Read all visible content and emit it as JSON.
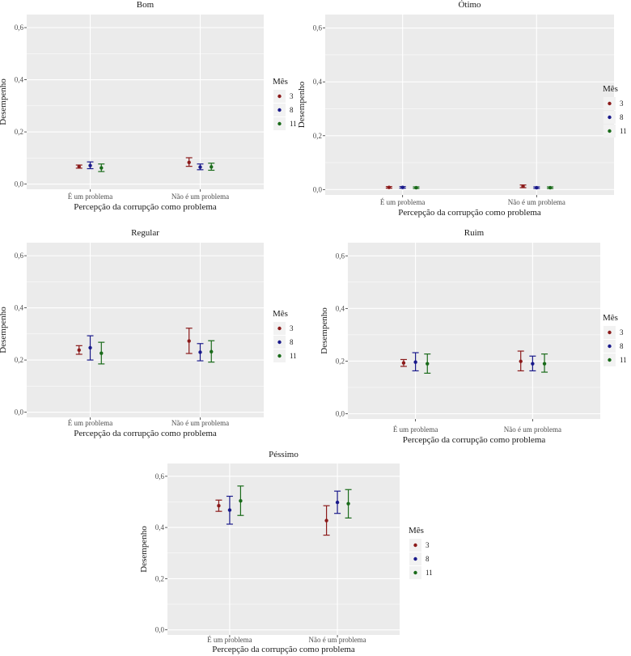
{
  "legend": {
    "title": "Mês",
    "items": [
      "3",
      "8",
      "11"
    ]
  },
  "colors": {
    "3": "#8b1a1a",
    "8": "#1a1a8b",
    "11": "#1a6b1a",
    "panel_bg": "#ebebeb",
    "grid": "#ffffff"
  },
  "chart_data": [
    {
      "type": "errorbar",
      "title": "Bom",
      "xlabel": "Percepção da corrupção como problema",
      "ylabel": "Desempenho",
      "categories": [
        "É um problema",
        "Não é um problema"
      ],
      "yticks": [
        "0,0",
        "0,2",
        "0,4",
        "0,6"
      ],
      "ylim": [
        -0.02,
        0.65
      ],
      "series": [
        {
          "name": "3",
          "mean": [
            0.067,
            0.083
          ],
          "low": [
            0.061,
            0.068
          ],
          "high": [
            0.073,
            0.101
          ]
        },
        {
          "name": "8",
          "mean": [
            0.071,
            0.065
          ],
          "low": [
            0.059,
            0.055
          ],
          "high": [
            0.085,
            0.077
          ]
        },
        {
          "name": "11",
          "mean": [
            0.062,
            0.066
          ],
          "low": [
            0.048,
            0.053
          ],
          "high": [
            0.077,
            0.08
          ]
        }
      ]
    },
    {
      "type": "errorbar",
      "title": "Ótimo",
      "xlabel": "Percepção da corrupção como problema",
      "ylabel": "Desempenho",
      "categories": [
        "É um problema",
        "Não é um problema"
      ],
      "yticks": [
        "0,0",
        "0,2",
        "0,4",
        "0,6"
      ],
      "ylim": [
        -0.02,
        0.65
      ],
      "series": [
        {
          "name": "3",
          "mean": [
            0.008,
            0.012
          ],
          "low": [
            0.005,
            0.007
          ],
          "high": [
            0.011,
            0.017
          ]
        },
        {
          "name": "8",
          "mean": [
            0.008,
            0.007
          ],
          "low": [
            0.005,
            0.004
          ],
          "high": [
            0.011,
            0.01
          ]
        },
        {
          "name": "11",
          "mean": [
            0.007,
            0.007
          ],
          "low": [
            0.004,
            0.004
          ],
          "high": [
            0.01,
            0.01
          ]
        }
      ]
    },
    {
      "type": "errorbar",
      "title": "Regular",
      "xlabel": "Percepção da corrupção como problema",
      "ylabel": "Desempenho",
      "categories": [
        "É um problema",
        "Não é um problema"
      ],
      "yticks": [
        "0,0",
        "0,2",
        "0,4",
        "0,6"
      ],
      "ylim": [
        -0.02,
        0.65
      ],
      "series": [
        {
          "name": "3",
          "mean": [
            0.238,
            0.273
          ],
          "low": [
            0.222,
            0.225
          ],
          "high": [
            0.255,
            0.322
          ]
        },
        {
          "name": "8",
          "mean": [
            0.247,
            0.23
          ],
          "low": [
            0.2,
            0.197
          ],
          "high": [
            0.293,
            0.263
          ]
        },
        {
          "name": "11",
          "mean": [
            0.226,
            0.232
          ],
          "low": [
            0.185,
            0.192
          ],
          "high": [
            0.268,
            0.274
          ]
        }
      ]
    },
    {
      "type": "errorbar",
      "title": "Ruim",
      "xlabel": "Percepção da corrupção como problema",
      "ylabel": "Desempenho",
      "categories": [
        "É um problema",
        "Não é um problema"
      ],
      "yticks": [
        "0,0",
        "0,2",
        "0,4",
        "0,6"
      ],
      "ylim": [
        -0.02,
        0.65
      ],
      "series": [
        {
          "name": "3",
          "mean": [
            0.193,
            0.199
          ],
          "low": [
            0.18,
            0.163
          ],
          "high": [
            0.206,
            0.238
          ]
        },
        {
          "name": "8",
          "mean": [
            0.196,
            0.19
          ],
          "low": [
            0.163,
            0.163
          ],
          "high": [
            0.232,
            0.219
          ]
        },
        {
          "name": "11",
          "mean": [
            0.19,
            0.19
          ],
          "low": [
            0.154,
            0.158
          ],
          "high": [
            0.227,
            0.227
          ]
        }
      ]
    },
    {
      "type": "errorbar",
      "title": "Péssimo",
      "xlabel": "Percepção da corrupção como problema",
      "ylabel": "Desempenho",
      "categories": [
        "É um problema",
        "Não é um problema"
      ],
      "yticks": [
        "0,0",
        "0,2",
        "0,4",
        "0,6"
      ],
      "ylim": [
        -0.02,
        0.65
      ],
      "series": [
        {
          "name": "3",
          "mean": [
            0.485,
            0.427
          ],
          "low": [
            0.463,
            0.37
          ],
          "high": [
            0.507,
            0.485
          ]
        },
        {
          "name": "8",
          "mean": [
            0.468,
            0.498
          ],
          "low": [
            0.413,
            0.455
          ],
          "high": [
            0.522,
            0.542
          ]
        },
        {
          "name": "11",
          "mean": [
            0.504,
            0.493
          ],
          "low": [
            0.447,
            0.437
          ],
          "high": [
            0.562,
            0.548
          ]
        }
      ]
    }
  ]
}
